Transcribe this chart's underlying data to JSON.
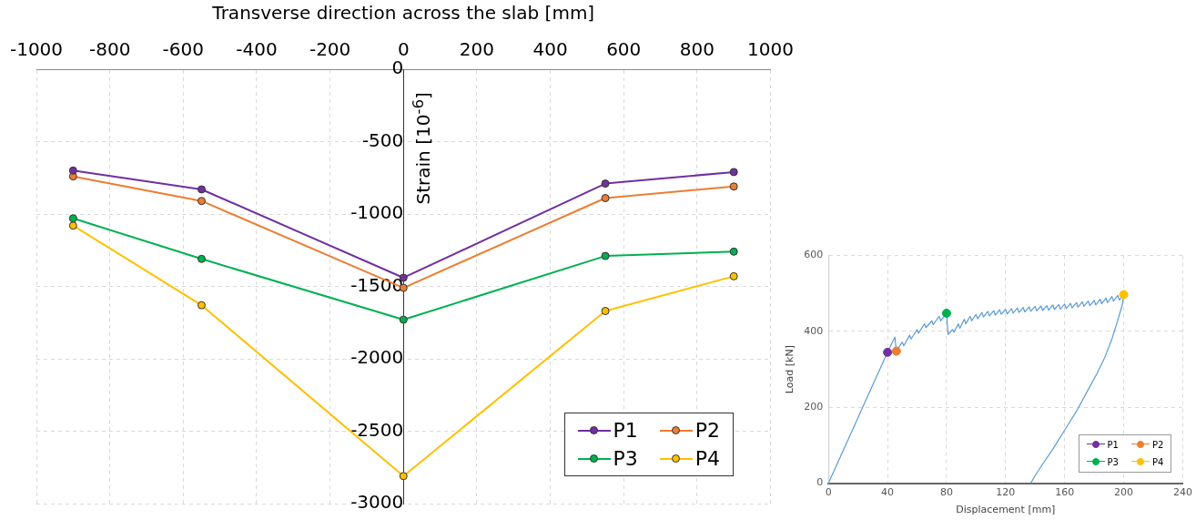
{
  "chart_data": [
    {
      "type": "line",
      "xlabel": "Transverse direction across the slab [mm]",
      "ylabel": "Strain [10$^{-6}$]",
      "xlim": [
        -1000,
        1000
      ],
      "xticks": [
        -1000,
        -800,
        -600,
        -400,
        -200,
        0,
        200,
        400,
        600,
        800,
        1000
      ],
      "ylim": [
        -3000,
        0
      ],
      "yticks": [
        -3000,
        -2500,
        -2000,
        -1500,
        -1000,
        -500,
        0
      ],
      "x": [
        -900,
        -550,
        0,
        550,
        900
      ],
      "series": [
        {
          "name": "P1",
          "color": "#7030a0",
          "values": [
            -700,
            -830,
            -1440,
            -790,
            -710
          ]
        },
        {
          "name": "P2",
          "color": "#ed7d31",
          "values": [
            -740,
            -910,
            -1510,
            -890,
            -810
          ]
        },
        {
          "name": "P3",
          "color": "#00b050",
          "values": [
            -1030,
            -1310,
            -1730,
            -1290,
            -1260
          ]
        },
        {
          "name": "P4",
          "color": "#ffc000",
          "values": [
            -1080,
            -1630,
            -2810,
            -1670,
            -1430
          ]
        }
      ],
      "marker": "circle",
      "grid": true,
      "legend": "bottom right"
    },
    {
      "type": "line",
      "xlabel": "Displacement [mm]",
      "ylabel": "Load [kN]",
      "xlim": [
        0,
        240
      ],
      "xticks": [
        0,
        40,
        80,
        120,
        160,
        200,
        240
      ],
      "ylim": [
        0,
        600
      ],
      "yticks": [
        0,
        200,
        400,
        600
      ],
      "series": [
        {
          "color": "#5b9bd5",
          "marker": "none",
          "x": [
            0,
            40,
            45,
            46,
            50,
            51,
            55,
            56,
            60,
            61,
            65,
            66,
            70,
            71,
            75,
            76,
            80,
            81,
            84,
            85,
            88,
            89,
            92,
            93,
            96,
            97,
            100,
            101,
            104,
            105,
            108,
            109,
            112,
            113,
            116,
            117,
            120,
            121,
            124,
            125,
            128,
            129,
            132,
            133,
            136,
            137,
            140,
            141,
            144,
            145,
            148,
            149,
            152,
            153,
            156,
            157,
            160,
            161,
            164,
            165,
            168,
            169,
            172,
            173,
            176,
            177,
            180,
            181,
            184,
            185,
            188,
            189,
            192,
            193,
            196,
            197,
            200,
            199,
            196,
            192,
            187,
            182,
            175,
            168,
            160,
            152,
            145,
            140,
            137
          ],
          "values": [
            0,
            345,
            385,
            348,
            372,
            362,
            390,
            380,
            405,
            395,
            420,
            410,
            428,
            418,
            440,
            428,
            448,
            392,
            405,
            398,
            420,
            408,
            432,
            420,
            440,
            428,
            445,
            433,
            450,
            438,
            453,
            441,
            455,
            443,
            457,
            445,
            458,
            446,
            460,
            448,
            462,
            450,
            463,
            451,
            465,
            453,
            466,
            454,
            467,
            455,
            468,
            456,
            470,
            458,
            471,
            459,
            472,
            460,
            474,
            462,
            476,
            464,
            478,
            466,
            480,
            468,
            482,
            470,
            485,
            473,
            488,
            476,
            492,
            480,
            495,
            483,
            497,
            470,
            430,
            380,
            330,
            290,
            240,
            190,
            140,
            90,
            50,
            20,
            0
          ]
        },
        {
          "type": "scatter",
          "name": "P1",
          "color": "#7030a0",
          "x": [
            40
          ],
          "values": [
            345
          ]
        },
        {
          "type": "scatter",
          "name": "P2",
          "color": "#ed7d31",
          "x": [
            46
          ],
          "values": [
            348
          ]
        },
        {
          "type": "scatter",
          "name": "P3",
          "color": "#00b050",
          "x": [
            80
          ],
          "values": [
            448
          ]
        },
        {
          "type": "scatter",
          "name": "P4",
          "color": "#ffc000",
          "x": [
            200
          ],
          "values": [
            497
          ]
        }
      ],
      "marker": "circle",
      "grid": true,
      "legend": "bottom right"
    }
  ]
}
